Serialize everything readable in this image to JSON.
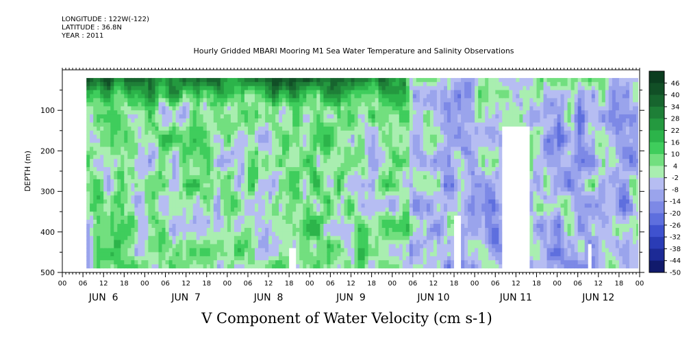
{
  "header": {
    "longitude": "LONGITUDE : 122W(-122)",
    "latitude": "LATITUDE : 36.8N",
    "year": "YEAR : 2011"
  },
  "title": "Hourly Gridded MBARI Mooring M1 Sea Water Temperature and Salinity Observations",
  "bottom_title": "V Component of Water Velocity (cm s-1)",
  "chart_data": {
    "type": "heatmap",
    "title": "Hourly Gridded MBARI Mooring M1 Sea Water Temperature and Salinity Observations",
    "subtitle": "V Component of Water Velocity (cm s-1)",
    "ylabel": "DEPTH (m)",
    "xlabel": "",
    "y_axis": {
      "range": [
        500,
        0
      ],
      "inverted": true,
      "ticks": [
        100,
        200,
        300,
        400,
        500
      ],
      "data_top_depth": 20,
      "data_bottom_depth": 490
    },
    "x_axis": {
      "range_hours": [
        0,
        168
      ],
      "hour_ticks": [
        "00",
        "06",
        "12",
        "18",
        "00",
        "06",
        "12",
        "18",
        "00",
        "06",
        "12",
        "18",
        "00",
        "06",
        "12",
        "18",
        "00",
        "06",
        "12",
        "18",
        "00",
        "06",
        "12",
        "18",
        "00",
        "06",
        "12",
        "18",
        "00"
      ],
      "day_labels": [
        "JUN  6",
        "JUN  7",
        "JUN  8",
        "JUN  9",
        "JUN 10",
        "JUN 11",
        "JUN 12"
      ],
      "data_start_hour": 7
    },
    "colorbar": {
      "ticks": [
        46,
        40,
        34,
        28,
        22,
        16,
        10,
        4,
        -2,
        -8,
        -14,
        -20,
        -26,
        -32,
        -38,
        -44,
        -50
      ],
      "bins": [
        {
          "lo": 46,
          "hi": 52,
          "color": "#0b3d1f"
        },
        {
          "lo": 40,
          "hi": 46,
          "color": "#114f26"
        },
        {
          "lo": 34,
          "hi": 40,
          "color": "#17652e"
        },
        {
          "lo": 28,
          "hi": 34,
          "color": "#1e7f37"
        },
        {
          "lo": 22,
          "hi": 28,
          "color": "#24993f"
        },
        {
          "lo": 16,
          "hi": 22,
          "color": "#2cb44a"
        },
        {
          "lo": 10,
          "hi": 16,
          "color": "#3fcd5c"
        },
        {
          "lo": 4,
          "hi": 10,
          "color": "#72df7f"
        },
        {
          "lo": -2,
          "hi": 4,
          "color": "#a9eeb0"
        },
        {
          "lo": -8,
          "hi": -2,
          "color": "#b6bdf2"
        },
        {
          "lo": -14,
          "hi": -8,
          "color": "#9aa4ec"
        },
        {
          "lo": -20,
          "hi": -14,
          "color": "#7d89e6"
        },
        {
          "lo": -26,
          "hi": -20,
          "color": "#5e6fde"
        },
        {
          "lo": -32,
          "hi": -26,
          "color": "#3f52cf"
        },
        {
          "lo": -38,
          "hi": -32,
          "color": "#2a3cb6"
        },
        {
          "lo": -44,
          "hi": -38,
          "color": "#1c2a96"
        },
        {
          "lo": -50,
          "hi": -44,
          "color": "#111a6c"
        }
      ]
    },
    "missing_regions": [
      {
        "hour_from": 66,
        "hour_to": 68,
        "depth_from": 440,
        "depth_to": 500
      },
      {
        "hour_from": 114,
        "hour_to": 116,
        "depth_from": 360,
        "depth_to": 500
      },
      {
        "hour_from": 128,
        "hour_to": 136,
        "depth_from": 140,
        "depth_to": 500
      },
      {
        "hour_from": 153,
        "hour_to": 154,
        "depth_from": 430,
        "depth_to": 500
      }
    ]
  }
}
